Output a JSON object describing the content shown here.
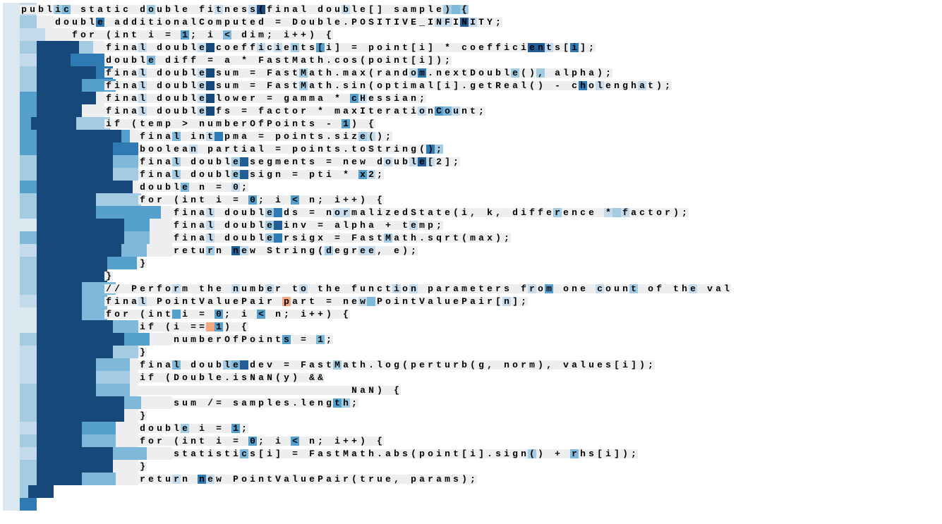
{
  "color_ramp": [
    "#eceef0",
    "#dce8f0",
    "#c5daea",
    "#a3cce3",
    "#7fb9da",
    "#549fcb",
    "#2f7ab3",
    "#225d96",
    "#17487a"
  ],
  "bg": "#eceef0",
  "text_color": "#000000",
  "orange": "#f4a582",
  "rows": [
    {
      "b": [
        [
          24,
          1
        ],
        [
          24,
          2
        ]
      ],
      "pad": 24,
      "txt": "public static double fitness(final double[] sample) {",
      "hl": {
        "4": 3,
        "5": 4,
        "15": 3,
        "23": 2,
        "27": 2,
        "28": 8,
        "38": 2,
        "50": 3,
        "51": 4,
        "52": 3,
        "62": 2,
        "67": 2
      }
    },
    {
      "b": [
        [
          24,
          1
        ],
        [
          24,
          3
        ]
      ],
      "pad": 72,
      "txt": "double additionalComputed = Double.POSITIVE_INFINITY;",
      "hl": {
        "5": 6,
        "45": 2,
        "46": 2,
        "48": 7,
        "49": 2
      }
    },
    {
      "b": [
        [
          24,
          1
        ],
        [
          36,
          2
        ]
      ],
      "pad": 96,
      "txt": "for (int i = 1; i < dim; i++) {",
      "hl": {
        "13": 5,
        "18": 4
      }
    },
    {
      "b": [
        [
          24,
          1
        ],
        [
          24,
          3
        ],
        [
          60,
          8
        ],
        [
          20,
          3
        ]
      ],
      "pad": 144,
      "txt": "final double coefficients[i] = point[i] * coefficients[i];",
      "hl": {
        "4": 2,
        "11": 2,
        "12": 8,
        "18": 2,
        "20": 2,
        "22": 3,
        "25": 5,
        "50": 7,
        "51": 7,
        "52": 2,
        "55": 6
      }
    },
    {
      "b": [
        [
          24,
          1
        ],
        [
          24,
          2
        ],
        [
          48,
          8
        ],
        [
          48,
          6
        ]
      ],
      "pad": 144,
      "txt": "double diff = a * FastMath.cos(point[i]);",
      "hl": {
        "5": 4
      }
    },
    {
      "b": [
        [
          24,
          1
        ],
        [
          24,
          3
        ],
        [
          84,
          8
        ],
        [
          24,
          6
        ]
      ],
      "pad": 144,
      "txt": "final double sum = FastMath.max(random.nextDouble(), alpha);",
      "hl": {
        "4": 2,
        "11": 2,
        "12": 8,
        "23": 3,
        "36": 2,
        "37": 6,
        "48": 3,
        "51": 3
      }
    },
    {
      "b": [
        [
          24,
          1
        ],
        [
          24,
          3
        ],
        [
          64,
          8
        ],
        [
          48,
          5
        ]
      ],
      "pad": 144,
      "txt": "final double sum = FastMath.sin(optimal[i].getReal() - cholenghat);",
      "hl": {
        "4": 2,
        "11": 2,
        "12": 8,
        "23": 3,
        "56": 6,
        "58": 2,
        "63": 2
      }
    },
    {
      "b": [
        [
          24,
          1
        ],
        [
          24,
          5
        ],
        [
          84,
          8
        ]
      ],
      "pad": 144,
      "txt": "final double lower = gamma * cHessian;",
      "hl": {
        "4": 2,
        "11": 2,
        "12": 8,
        "29": 5,
        "30": 2
      }
    },
    {
      "b": [
        [
          24,
          1
        ],
        [
          24,
          5
        ],
        [
          64,
          8
        ]
      ],
      "pad": 144,
      "txt": "final double fs = factor * maxIterationCount;",
      "hl": {
        "4": 2,
        "11": 2,
        "12": 8,
        "37": 2,
        "39": 5,
        "40": 4,
        "41": 2
      }
    },
    {
      "b": [
        [
          24,
          1
        ],
        [
          16,
          5
        ],
        [
          64,
          8
        ],
        [
          48,
          3
        ]
      ],
      "pad": 144,
      "txt": "if (temp > numberOfPoints - 1) {",
      "hl": {
        "28": 5
      }
    },
    {
      "b": [
        [
          24,
          1
        ],
        [
          24,
          5
        ],
        [
          120,
          8
        ],
        [
          12,
          5
        ]
      ],
      "pad": 192,
      "txt": "final int pma = points.size();",
      "hl": {
        "4": 4,
        "8": 2,
        "9": 6,
        "26": 3,
        "27": 2
      }
    },
    {
      "b": [
        [
          24,
          1
        ],
        [
          24,
          5
        ],
        [
          108,
          8
        ],
        [
          36,
          6
        ]
      ],
      "pad": 192,
      "txt": "boolean partial = points.toString();",
      "hl": {
        "6": 2,
        "34": 6,
        "35": 3
      }
    },
    {
      "b": [
        [
          24,
          1
        ],
        [
          24,
          3
        ],
        [
          108,
          8
        ],
        [
          36,
          4
        ]
      ],
      "pad": 192,
      "txt": "final double segments = new double[2];",
      "hl": {
        "4": 3,
        "11": 3,
        "12": 7,
        "29": 2,
        "32": 2,
        "33": 7,
        "34": 2
      }
    },
    {
      "b": [
        [
          24,
          1
        ],
        [
          24,
          3
        ],
        [
          108,
          8
        ],
        [
          36,
          3
        ]
      ],
      "pad": 192,
      "txt": "final double sign = pti * x2;",
      "hl": {
        "4": 3,
        "11": 3,
        "12": 7,
        "26": 5,
        "27": 2
      }
    },
    {
      "b": [
        [
          24,
          1
        ],
        [
          24,
          5
        ],
        [
          136,
          8
        ]
      ],
      "pad": 192,
      "txt": "double n = 0;",
      "hl": {
        "5": 4,
        "11": 2
      }
    },
    {
      "b": [
        [
          24,
          1
        ],
        [
          24,
          3
        ],
        [
          84,
          8
        ],
        [
          64,
          3
        ]
      ],
      "pad": 192,
      "txt": "for (int i = 0; i < n; i++) {",
      "hl": {
        "13": 5,
        "18": 5
      }
    },
    {
      "b": [
        [
          24,
          1
        ],
        [
          24,
          3
        ],
        [
          84,
          8
        ],
        [
          92,
          5
        ]
      ],
      "pad": 240,
      "txt": "final double ds = normalizedState(i, k, difference * factor);",
      "hl": {
        "4": 2,
        "11": 3,
        "12": 6,
        "19": 2,
        "20": 2,
        "45": 3,
        "51": 2,
        "52": 3,
        "53": 2
      }
    },
    {
      "b": [
        [
          24,
          1
        ],
        [
          24,
          1
        ],
        [
          124,
          8
        ],
        [
          36,
          5
        ]
      ],
      "pad": 240,
      "txt": "final double inv = alpha + temp;",
      "hl": {
        "4": 2,
        "11": 3,
        "12": 7,
        "28": 2
      }
    },
    {
      "b": [
        [
          24,
          1
        ],
        [
          24,
          4
        ],
        [
          124,
          8
        ],
        [
          36,
          4
        ]
      ],
      "pad": 240,
      "txt": "final double rsigx = FastMath.sqrt(max);",
      "hl": {
        "4": 2,
        "11": 3,
        "12": 6,
        "25": 3
      }
    },
    {
      "b": [
        [
          24,
          1
        ],
        [
          24,
          2
        ],
        [
          120,
          8
        ],
        [
          36,
          4
        ]
      ],
      "pad": 240,
      "txt": "return new String(degree, e);",
      "hl": {
        "4": 3,
        "7": 7,
        "8": 2,
        "18": 3,
        "22": 2,
        "23": 2
      }
    },
    {
      "b": [
        [
          24,
          1
        ],
        [
          24,
          3
        ],
        [
          100,
          8
        ],
        [
          42,
          5
        ]
      ],
      "pad": 192,
      "txt": "}",
      "hl": {}
    },
    {
      "b": [
        [
          24,
          1
        ],
        [
          24,
          3
        ],
        [
          100,
          8
        ]
      ],
      "pad": 144,
      "txt": "}",
      "hl": {}
    },
    {
      "b": [
        [
          24,
          1
        ],
        [
          24,
          3
        ],
        [
          64,
          8
        ],
        [
          48,
          4
        ]
      ],
      "pad": 144,
      "txt": "// Perform the number to the function parameters from one count of the val",
      "hl": {
        "8": 2,
        "15": 2,
        "19": 2,
        "23": 2,
        "34": 2,
        "36": 2,
        "50": 2,
        "52": 5,
        "58": 2,
        "62": 3,
        "69": 2,
        "74": 2
      }
    },
    {
      "b": [
        [
          24,
          1
        ],
        [
          24,
          2
        ],
        [
          64,
          8
        ],
        [
          36,
          4
        ]
      ],
      "pad": 144,
      "txt": "final PointValuePair part = new PointValuePair[n];",
      "hl": {
        "4": 2,
        "21": 9,
        "30": 2,
        "31": 4,
        "47": 2
      }
    },
    {
      "b": [
        [
          24,
          1
        ],
        [
          24,
          1
        ],
        [
          64,
          8
        ],
        [
          36,
          4
        ]
      ],
      "pad": 144,
      "txt": "for (int i = 0; i < n; i++) {",
      "hl": {
        "8": 5,
        "13": 5,
        "18": 5
      }
    },
    {
      "b": [
        [
          24,
          1
        ],
        [
          24,
          1
        ],
        [
          108,
          8
        ],
        [
          36,
          4
        ]
      ],
      "pad": 192,
      "txt": "if (i == 1) {",
      "hl": {
        "8": 9,
        "9": 5
      }
    },
    {
      "b": [
        [
          24,
          1
        ],
        [
          24,
          3
        ],
        [
          124,
          8
        ],
        [
          36,
          5
        ]
      ],
      "pad": 240,
      "txt": "numberOfPoints = 1;",
      "hl": {
        "13": 5,
        "17": 4
      }
    },
    {
      "b": [
        [
          24,
          1
        ],
        [
          24,
          2
        ],
        [
          108,
          8
        ],
        [
          36,
          3
        ]
      ],
      "pad": 192,
      "txt": "}",
      "hl": {}
    },
    {
      "b": [
        [
          24,
          1
        ],
        [
          24,
          2
        ],
        [
          84,
          8
        ],
        [
          48,
          4
        ]
      ],
      "pad": 192,
      "txt": "final double dev = FastMath.log(perturb(g, norm), values[i]);",
      "hl": {
        "4": 4,
        "10": 3,
        "11": 4,
        "12": 7,
        "23": 3
      }
    },
    {
      "b": [
        [
          24,
          1
        ],
        [
          24,
          2
        ],
        [
          84,
          8
        ],
        [
          48,
          3
        ]
      ],
      "pad": 192,
      "txt": "if (Double.isNaN(y) &&",
      "hl": {}
    },
    {
      "b": [
        [
          24,
          1
        ],
        [
          24,
          3
        ],
        [
          84,
          8
        ],
        [
          48,
          4
        ]
      ],
      "pad": 192,
      "txt": "                         NaN) {",
      "hl": {}
    },
    {
      "b": [
        [
          24,
          1
        ],
        [
          24,
          3
        ],
        [
          124,
          8
        ],
        [
          24,
          4
        ]
      ],
      "pad": 240,
      "txt": "sum /= samples.length;",
      "hl": {
        "19": 5,
        "20": 3
      }
    },
    {
      "b": [
        [
          24,
          1
        ],
        [
          24,
          3
        ],
        [
          124,
          8
        ]
      ],
      "pad": 192,
      "txt": "}",
      "hl": {}
    },
    {
      "b": [
        [
          24,
          1
        ],
        [
          24,
          2
        ],
        [
          64,
          8
        ],
        [
          48,
          5
        ]
      ],
      "pad": 192,
      "txt": "double i = 1;",
      "hl": {
        "5": 3,
        "11": 5
      }
    },
    {
      "b": [
        [
          24,
          1
        ],
        [
          24,
          3
        ],
        [
          64,
          8
        ],
        [
          48,
          4
        ]
      ],
      "pad": 192,
      "txt": "for (int i = 0; i < n; i++) {",
      "hl": {
        "13": 5,
        "18": 5
      }
    },
    {
      "b": [
        [
          24,
          1
        ],
        [
          24,
          2
        ],
        [
          108,
          8
        ],
        [
          48,
          4
        ]
      ],
      "pad": 240,
      "txt": "statistics[i] = FastMath.abs(point[i].sign() + rhs[i]);",
      "hl": {
        "8": 4,
        "42": 3,
        "47": 4
      }
    },
    {
      "b": [
        [
          24,
          1
        ],
        [
          24,
          3
        ],
        [
          108,
          8
        ]
      ],
      "pad": 192,
      "txt": "}",
      "hl": {}
    },
    {
      "b": [
        [
          24,
          1
        ],
        [
          24,
          3
        ],
        [
          64,
          8
        ],
        [
          48,
          4
        ]
      ],
      "pad": 192,
      "txt": "return new PointValuePair(true, params);",
      "hl": {
        "4": 2,
        "7": 6,
        "8": 2
      }
    },
    {
      "b": [
        [
          24,
          1
        ],
        [
          12,
          3
        ],
        [
          36,
          8
        ]
      ],
      "pad": 0,
      "txt": "",
      "hl": {}
    },
    {
      "b": [
        [
          24,
          1
        ],
        [
          24,
          6
        ]
      ],
      "pad": 0,
      "txt": "",
      "hl": {}
    }
  ]
}
